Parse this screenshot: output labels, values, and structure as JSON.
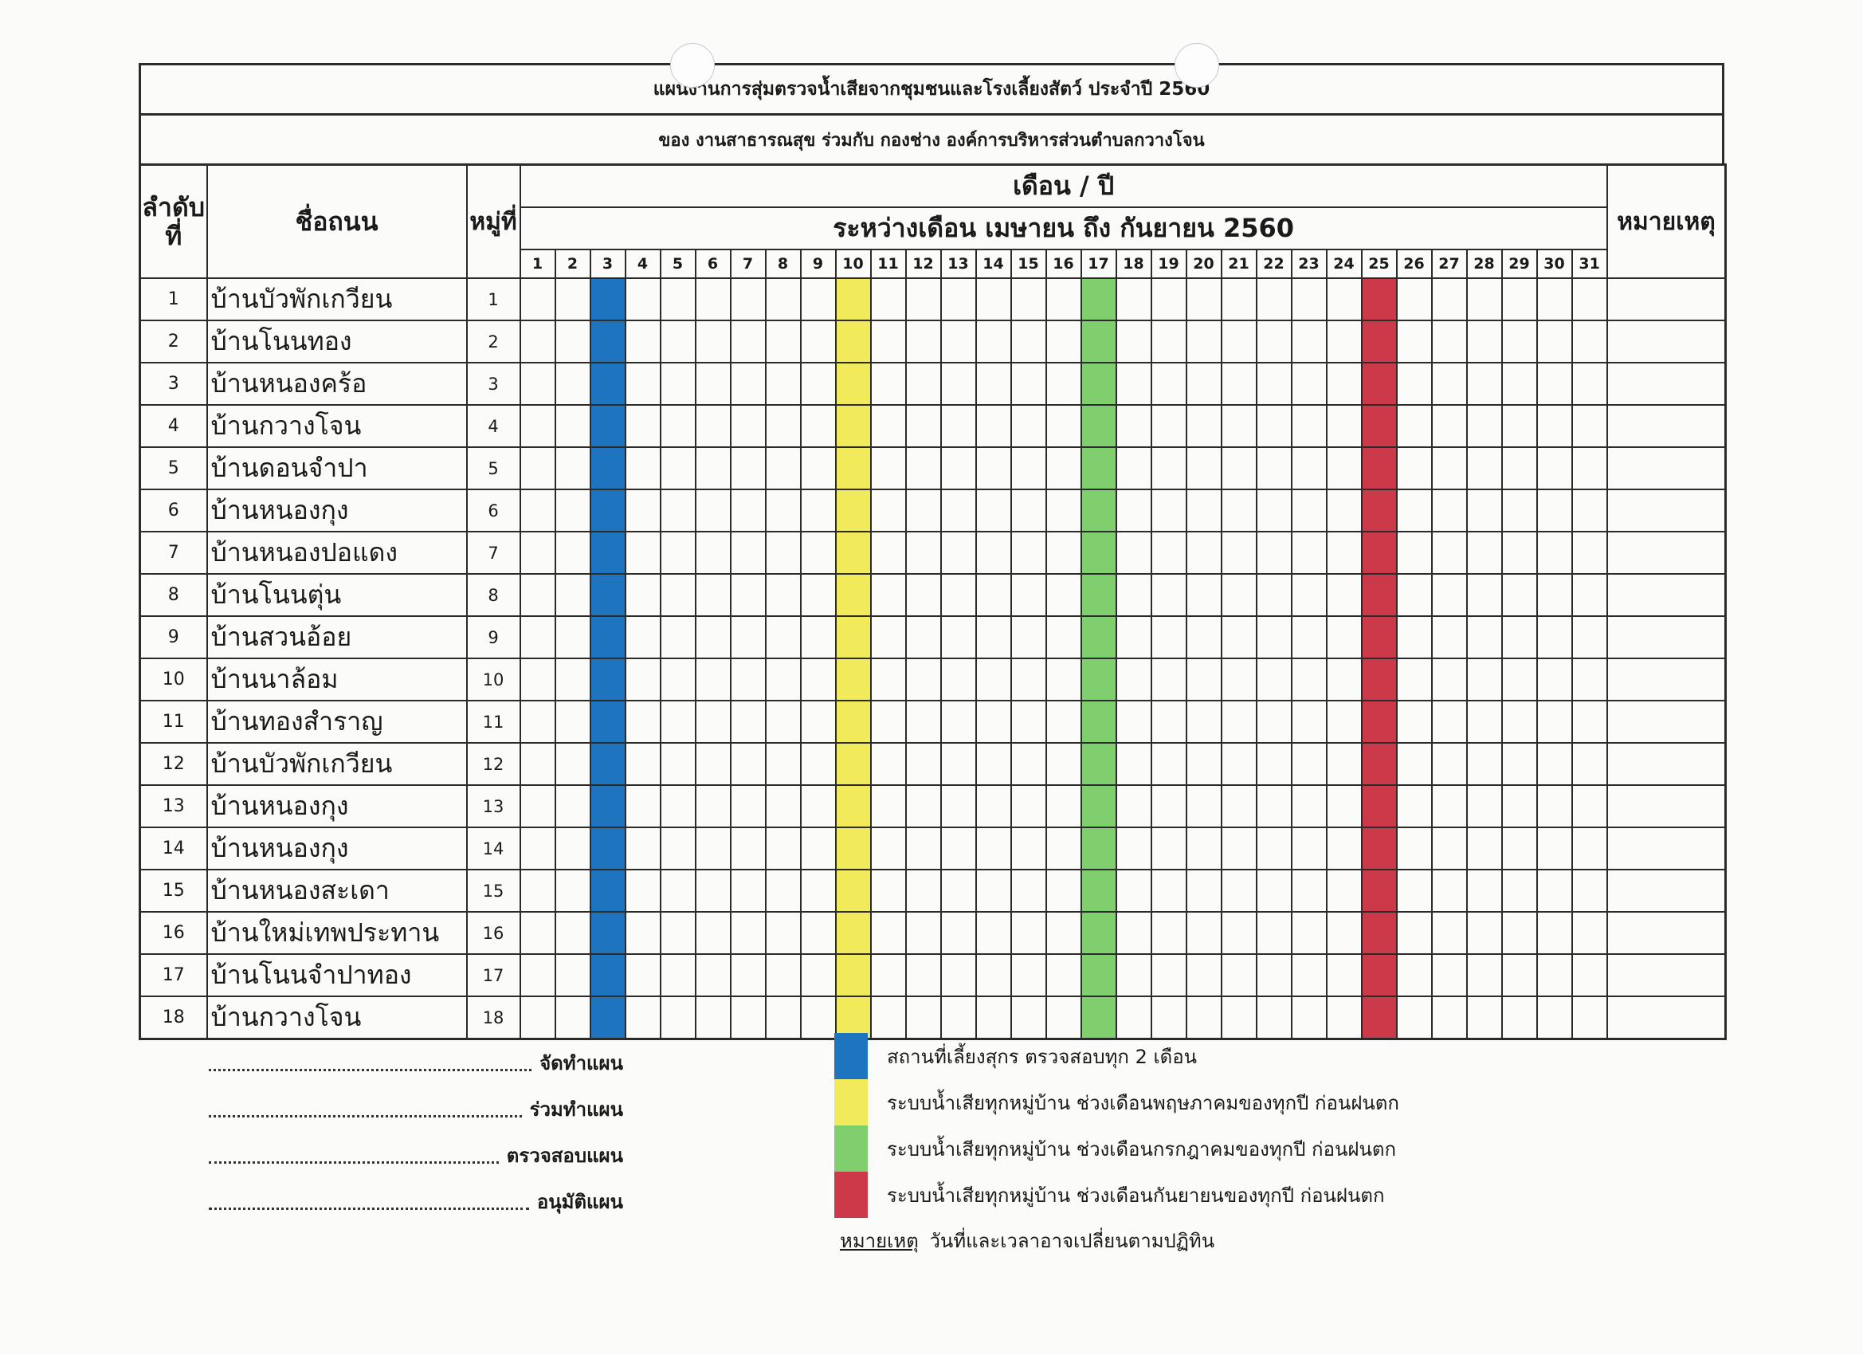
{
  "document": {
    "title": "แผนงานการสุ่มตรวจน้ำเสียจากชุมชนและโรงเลี้ยงสัตว์ ประจำปี 2560",
    "subtitle": "ของ งานสาธารณสุข ร่วมกับ กองช่าง องค์การบริหารส่วนตำบลกวางโจน"
  },
  "table": {
    "headers": {
      "order": "ลำดับที่",
      "road": "ชื่อถนน",
      "moo": "หมู่ที่",
      "month_year": "เดือน / ปี",
      "period": "ระหว่างเดือน เมษายน ถึง กันยายน 2560",
      "remark": "หมายเหตุ"
    },
    "days": [
      "1",
      "2",
      "3",
      "4",
      "5",
      "6",
      "7",
      "8",
      "9",
      "10",
      "11",
      "12",
      "13",
      "14",
      "15",
      "16",
      "17",
      "18",
      "19",
      "20",
      "21",
      "22",
      "23",
      "24",
      "25",
      "26",
      "27",
      "28",
      "29",
      "30",
      "31"
    ],
    "highlight_days": [
      {
        "day": 3,
        "color": "#1f74bf"
      },
      {
        "day": 10,
        "color": "#f1ea5a"
      },
      {
        "day": 17,
        "color": "#7fcf6e"
      },
      {
        "day": 25,
        "color": "#cc3948"
      }
    ],
    "rows": [
      {
        "no": "1",
        "name": "บ้านบัวพักเกวียน",
        "moo": "1"
      },
      {
        "no": "2",
        "name": "บ้านโนนทอง",
        "moo": "2"
      },
      {
        "no": "3",
        "name": "บ้านหนองคร้อ",
        "moo": "3"
      },
      {
        "no": "4",
        "name": "บ้านกวางโจน",
        "moo": "4"
      },
      {
        "no": "5",
        "name": "บ้านดอนจำปา",
        "moo": "5"
      },
      {
        "no": "6",
        "name": "บ้านหนองกุง",
        "moo": "6"
      },
      {
        "no": "7",
        "name": "บ้านหนองปอแดง",
        "moo": "7"
      },
      {
        "no": "8",
        "name": "บ้านโนนตุ่น",
        "moo": "8"
      },
      {
        "no": "9",
        "name": "บ้านสวนอ้อย",
        "moo": "9"
      },
      {
        "no": "10",
        "name": "บ้านนาล้อม",
        "moo": "10"
      },
      {
        "no": "11",
        "name": "บ้านทองสำราญ",
        "moo": "11"
      },
      {
        "no": "12",
        "name": "บ้านบัวพักเกวียน",
        "moo": "12"
      },
      {
        "no": "13",
        "name": "บ้านหนองกุง",
        "moo": "13"
      },
      {
        "no": "14",
        "name": "บ้านหนองกุง",
        "moo": "14"
      },
      {
        "no": "15",
        "name": "บ้านหนองสะเดา",
        "moo": "15"
      },
      {
        "no": "16",
        "name": "บ้านใหม่เทพประทาน",
        "moo": "16"
      },
      {
        "no": "17",
        "name": "บ้านโนนจำปาทอง",
        "moo": "17"
      },
      {
        "no": "18",
        "name": "บ้านกวางโจน",
        "moo": "18"
      }
    ]
  },
  "signatures": [
    {
      "dots": "..................................................",
      "label": "จัดทำแผน"
    },
    {
      "dots": "..................................................",
      "label": "ร่วมทำแผน"
    },
    {
      "dots": "..................................................",
      "label": "ตรวจสอบแผน"
    },
    {
      "dots": "..................................................",
      "label": "อนุมัติแผน"
    }
  ],
  "legend": [
    {
      "color": "#1f74bf",
      "text": "สถานที่เลี้ยงสุกร ตรวจสอบทุก 2 เดือน"
    },
    {
      "color": "#f1ea5a",
      "text": "ระบบน้ำเสียทุกหมู่บ้าน ช่วงเดือนพฤษภาคมของทุกปี ก่อนฝนตก"
    },
    {
      "color": "#7fcf6e",
      "text": "ระบบน้ำเสียทุกหมู่บ้าน ช่วงเดือนกรกฎาคมของทุกปี ก่อนฝนตก"
    },
    {
      "color": "#cc3948",
      "text": "ระบบน้ำเสียทุกหมู่บ้าน ช่วงเดือนกันยายนของทุกปี ก่อนฝนตก"
    }
  ],
  "note": {
    "label": "หมายเหตุ",
    "text": "วันที่และเวลาอาจเปลี่ยนตามปฏิทิน"
  }
}
